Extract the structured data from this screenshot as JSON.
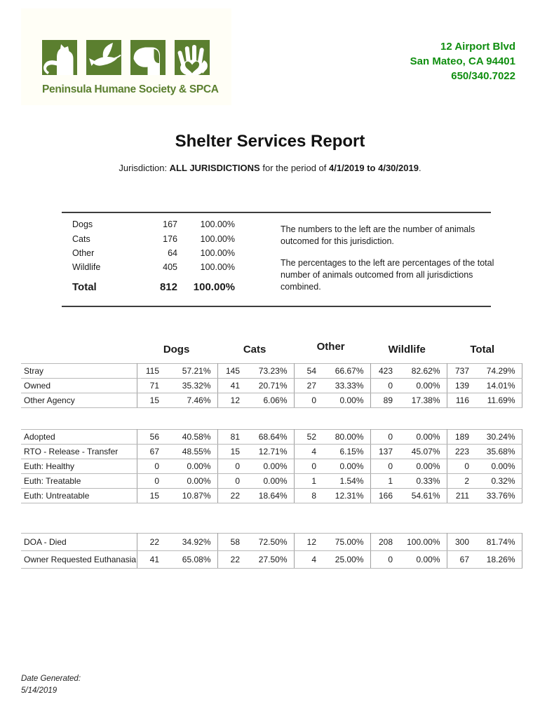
{
  "colors": {
    "logo_green": "#5b7f2f",
    "address_green": "#0f8e0f"
  },
  "logo": {
    "org_name": "Peninsula Humane Society & SPCA",
    "icons": [
      "cat-icon",
      "dove-icon",
      "dog-icon",
      "hand-heart-icon"
    ]
  },
  "address": {
    "lines": [
      "12 Airport Blvd",
      "San Mateo, CA 94401",
      "650/340.7022"
    ]
  },
  "title": "Shelter Services Report",
  "jurisdiction": {
    "prefix": "Jurisdiction: ",
    "jurisdiction_value": "ALL JURISDICTIONS",
    "middle": " for the period of ",
    "period_value": "4/1/2019 to 4/30/2019",
    "suffix": "."
  },
  "summary": {
    "rows": [
      {
        "label": "Dogs",
        "count": "167",
        "pct": "100.00%"
      },
      {
        "label": "Cats",
        "count": "176",
        "pct": "100.00%"
      },
      {
        "label": "Other",
        "count": "64",
        "pct": "100.00%"
      },
      {
        "label": "Wildlife",
        "count": "405",
        "pct": "100.00%"
      }
    ],
    "total": {
      "label": "Total",
      "count": "812",
      "pct": "100.00%"
    },
    "note1": "The numbers to the left are the number of animals outcomed for this jurisdiction.",
    "note2": "The percentages to the left are percentages of the total number of animals outcomed from all jurisdictions combined."
  },
  "outcome_table": {
    "columns": [
      "Dogs",
      "Cats",
      "Other",
      "Wildlife",
      "Total"
    ],
    "blocks": [
      {
        "rows": [
          {
            "label": "Stray",
            "cells": [
              [
                "115",
                "57.21%"
              ],
              [
                "145",
                "73.23%"
              ],
              [
                "54",
                "66.67%"
              ],
              [
                "423",
                "82.62%"
              ],
              [
                "737",
                "74.29%"
              ]
            ]
          },
          {
            "label": "Owned",
            "cells": [
              [
                "71",
                "35.32%"
              ],
              [
                "41",
                "20.71%"
              ],
              [
                "27",
                "33.33%"
              ],
              [
                "0",
                "0.00%"
              ],
              [
                "139",
                "14.01%"
              ]
            ]
          },
          {
            "label": "Other Agency",
            "cells": [
              [
                "15",
                "7.46%"
              ],
              [
                "12",
                "6.06%"
              ],
              [
                "0",
                "0.00%"
              ],
              [
                "89",
                "17.38%"
              ],
              [
                "116",
                "11.69%"
              ]
            ]
          }
        ]
      },
      {
        "rows": [
          {
            "label": "Adopted",
            "cells": [
              [
                "56",
                "40.58%"
              ],
              [
                "81",
                "68.64%"
              ],
              [
                "52",
                "80.00%"
              ],
              [
                "0",
                "0.00%"
              ],
              [
                "189",
                "30.24%"
              ]
            ]
          },
          {
            "label": "RTO - Release - Transfer",
            "cells": [
              [
                "67",
                "48.55%"
              ],
              [
                "15",
                "12.71%"
              ],
              [
                "4",
                "6.15%"
              ],
              [
                "137",
                "45.07%"
              ],
              [
                "223",
                "35.68%"
              ]
            ]
          },
          {
            "label": "Euth: Healthy",
            "cells": [
              [
                "0",
                "0.00%"
              ],
              [
                "0",
                "0.00%"
              ],
              [
                "0",
                "0.00%"
              ],
              [
                "0",
                "0.00%"
              ],
              [
                "0",
                "0.00%"
              ]
            ]
          },
          {
            "label": "Euth: Treatable",
            "cells": [
              [
                "0",
                "0.00%"
              ],
              [
                "0",
                "0.00%"
              ],
              [
                "1",
                "1.54%"
              ],
              [
                "1",
                "0.33%"
              ],
              [
                "2",
                "0.32%"
              ]
            ]
          },
          {
            "label": "Euth: Untreatable",
            "cells": [
              [
                "15",
                "10.87%"
              ],
              [
                "22",
                "18.64%"
              ],
              [
                "8",
                "12.31%"
              ],
              [
                "166",
                "54.61%"
              ],
              [
                "211",
                "33.76%"
              ]
            ]
          }
        ]
      },
      {
        "rows": [
          {
            "label": "DOA - Died",
            "cells": [
              [
                "22",
                "34.92%"
              ],
              [
                "58",
                "72.50%"
              ],
              [
                "12",
                "75.00%"
              ],
              [
                "208",
                "100.00%"
              ],
              [
                "300",
                "81.74%"
              ]
            ]
          },
          {
            "label": "Owner Requested Euthanasia",
            "cells": [
              [
                "41",
                "65.08%"
              ],
              [
                "22",
                "27.50%"
              ],
              [
                "4",
                "25.00%"
              ],
              [
                "0",
                "0.00%"
              ],
              [
                "67",
                "18.26%"
              ]
            ]
          }
        ]
      }
    ]
  },
  "footer": {
    "label": "Date Generated:",
    "date": "5/14/2019"
  }
}
